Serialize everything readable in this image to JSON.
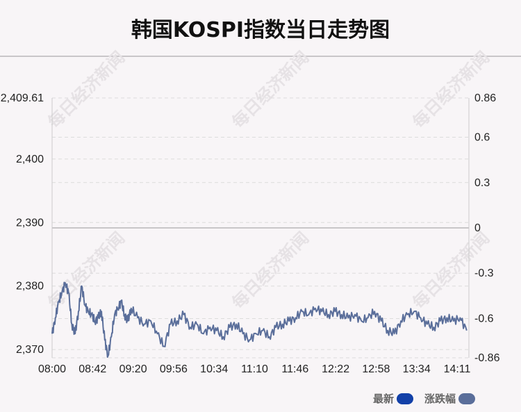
{
  "title": "韩国KOSPI指数当日走势图",
  "watermark": "每日经济新闻",
  "legend": [
    {
      "label": "最新",
      "color": "#1240a8"
    },
    {
      "label": "涨跌幅",
      "color": "#5a6e9a"
    }
  ],
  "colors": {
    "line": "#5a6e9a",
    "baseline": "#c8c6c8",
    "grid": "#dcdcdc",
    "axis": "#cccccc"
  },
  "chart_data": {
    "type": "line",
    "x_ticks": [
      "08:00",
      "08:42",
      "09:20",
      "09:56",
      "10:34",
      "11:10",
      "11:46",
      "12:22",
      "12:58",
      "13:34",
      "14:11"
    ],
    "y_left_ticks": [
      "2,409.61",
      "2,400",
      "2,390",
      "2,380",
      "2,370"
    ],
    "y_left_tick_values": [
      2409.61,
      2400,
      2390,
      2380,
      2370
    ],
    "y_left_range": [
      2368.7,
      2409.61
    ],
    "y_right_ticks": [
      "0.86",
      "0.6",
      "0.3",
      "0",
      "-0.3",
      "-0.6",
      "-0.86"
    ],
    "y_right_tick_values": [
      0.86,
      0.6,
      0.3,
      0,
      -0.3,
      -0.6,
      -0.86
    ],
    "y_right_range": [
      -0.86,
      0.86
    ],
    "grid": true,
    "series": [
      {
        "x_minutes": [
          0,
          3,
          6,
          9,
          12,
          15,
          18,
          21,
          24,
          27,
          30,
          33,
          36,
          39,
          42,
          45,
          48,
          51,
          54,
          57,
          60,
          63,
          66,
          69,
          72,
          78,
          84,
          90,
          96,
          102,
          108,
          114,
          120,
          126,
          132,
          138,
          144,
          150,
          156,
          162,
          168,
          174,
          180,
          186,
          192,
          198,
          204,
          210,
          216,
          222,
          228,
          234,
          240,
          246,
          252,
          258,
          264,
          270,
          276,
          282,
          288,
          294,
          300,
          306,
          312,
          318,
          324,
          330,
          336,
          342,
          348,
          354,
          360,
          366,
          372,
          378
        ],
        "values": [
          2372.5,
          2375.0,
          2377.5,
          2379.0,
          2380.5,
          2379.0,
          2374.0,
          2372.5,
          2376.0,
          2380.0,
          2377.0,
          2376.0,
          2375.5,
          2374.5,
          2375.0,
          2376.0,
          2371.5,
          2369.0,
          2372.0,
          2375.5,
          2376.5,
          2377.5,
          2375.5,
          2374.5,
          2376.5,
          2375.0,
          2374.0,
          2374.5,
          2372.5,
          2370.5,
          2374.0,
          2374.5,
          2375.5,
          2373.5,
          2374.0,
          2372.5,
          2373.5,
          2373.0,
          2372.0,
          2373.5,
          2374.0,
          2372.5,
          2371.5,
          2372.5,
          2373.0,
          2372.0,
          2373.5,
          2374.0,
          2374.5,
          2375.0,
          2376.0,
          2375.5,
          2376.5,
          2376.0,
          2375.5,
          2376.0,
          2375.5,
          2375.0,
          2375.5,
          2374.5,
          2375.0,
          2376.0,
          2374.5,
          2373.0,
          2372.5,
          2374.5,
          2375.5,
          2376.0,
          2375.0,
          2374.0,
          2373.5,
          2374.5,
          2375.0,
          2374.5,
          2375.0,
          2373.0
        ]
      }
    ]
  }
}
